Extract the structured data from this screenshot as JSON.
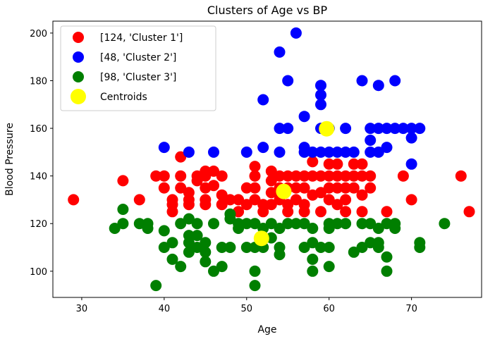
{
  "chart_data": {
    "type": "scatter",
    "title": "Clusters of Age vs BP",
    "xlabel": "Age",
    "ylabel": "Blood Pressure",
    "xlim": [
      26.5,
      78.5
    ],
    "ylim": [
      89,
      205
    ],
    "x_ticks": [
      30,
      40,
      50,
      60,
      70
    ],
    "y_ticks": [
      100,
      120,
      140,
      160,
      180,
      200
    ],
    "grid": false,
    "legend_position": "top-left",
    "series": [
      {
        "name": "[124, 'Cluster 1']",
        "color": "#ff0000",
        "points": [
          [
            29,
            130
          ],
          [
            35,
            138
          ],
          [
            37,
            130
          ],
          [
            39,
            140
          ],
          [
            40,
            140
          ],
          [
            40,
            135
          ],
          [
            41,
            130
          ],
          [
            41,
            128
          ],
          [
            41,
            125
          ],
          [
            42,
            148
          ],
          [
            42,
            140
          ],
          [
            42,
            135
          ],
          [
            43,
            133
          ],
          [
            43,
            130
          ],
          [
            43,
            128
          ],
          [
            44,
            138
          ],
          [
            44,
            140
          ],
          [
            45,
            142
          ],
          [
            45,
            140
          ],
          [
            45,
            135
          ],
          [
            45,
            130
          ],
          [
            45,
            128
          ],
          [
            46,
            142
          ],
          [
            46,
            136
          ],
          [
            47,
            140
          ],
          [
            47,
            132
          ],
          [
            47,
            128
          ],
          [
            48,
            130
          ],
          [
            49,
            130
          ],
          [
            49,
            125
          ],
          [
            50,
            135
          ],
          [
            50,
            128
          ],
          [
            51,
            144
          ],
          [
            51,
            140
          ],
          [
            51,
            135
          ],
          [
            51,
            130
          ],
          [
            52,
            128
          ],
          [
            52,
            125
          ],
          [
            53,
            142
          ],
          [
            53,
            138
          ],
          [
            53,
            133
          ],
          [
            53,
            128
          ],
          [
            54,
            140
          ],
          [
            54,
            135
          ],
          [
            54,
            132
          ],
          [
            54,
            130
          ],
          [
            55,
            140
          ],
          [
            55,
            135
          ],
          [
            55,
            128
          ],
          [
            55,
            125
          ],
          [
            56,
            140
          ],
          [
            56,
            135
          ],
          [
            56,
            130
          ],
          [
            57,
            140
          ],
          [
            57,
            135
          ],
          [
            57,
            128
          ],
          [
            57,
            125
          ],
          [
            58,
            146
          ],
          [
            58,
            140
          ],
          [
            58,
            132
          ],
          [
            59,
            140
          ],
          [
            59,
            133
          ],
          [
            59,
            125
          ],
          [
            60,
            145
          ],
          [
            60,
            140
          ],
          [
            60,
            135
          ],
          [
            60,
            130
          ],
          [
            61,
            145
          ],
          [
            61,
            140
          ],
          [
            61,
            135
          ],
          [
            61,
            128
          ],
          [
            62,
            140
          ],
          [
            62,
            135
          ],
          [
            62,
            130
          ],
          [
            62,
            125
          ],
          [
            63,
            145
          ],
          [
            63,
            140
          ],
          [
            63,
            135
          ],
          [
            64,
            145
          ],
          [
            64,
            140
          ],
          [
            64,
            132
          ],
          [
            64,
            125
          ],
          [
            65,
            140
          ],
          [
            65,
            135
          ],
          [
            67,
            125
          ],
          [
            69,
            140
          ],
          [
            70,
            130
          ],
          [
            76,
            140
          ],
          [
            77,
            125
          ]
        ]
      },
      {
        "name": "[48, 'Cluster 2']",
        "color": "#0000ff",
        "points": [
          [
            40,
            152
          ],
          [
            43,
            150
          ],
          [
            46,
            150
          ],
          [
            50,
            150
          ],
          [
            52,
            172
          ],
          [
            52,
            152
          ],
          [
            54,
            192
          ],
          [
            54,
            160
          ],
          [
            54,
            150
          ],
          [
            55,
            180
          ],
          [
            55,
            160
          ],
          [
            56,
            200
          ],
          [
            57,
            165
          ],
          [
            57,
            152
          ],
          [
            57,
            150
          ],
          [
            58,
            150
          ],
          [
            59,
            178
          ],
          [
            59,
            174
          ],
          [
            59,
            170
          ],
          [
            59,
            160
          ],
          [
            59,
            150
          ],
          [
            60,
            160
          ],
          [
            60,
            150
          ],
          [
            61,
            150
          ],
          [
            62,
            160
          ],
          [
            62,
            150
          ],
          [
            63,
            150
          ],
          [
            64,
            180
          ],
          [
            65,
            160
          ],
          [
            65,
            155
          ],
          [
            65,
            150
          ],
          [
            66,
            160
          ],
          [
            66,
            178
          ],
          [
            66,
            150
          ],
          [
            67,
            160
          ],
          [
            67,
            152
          ],
          [
            68,
            180
          ],
          [
            68,
            160
          ],
          [
            69,
            160
          ],
          [
            70,
            160
          ],
          [
            70,
            156
          ],
          [
            70,
            145
          ],
          [
            71,
            160
          ]
        ]
      },
      {
        "name": "[98, 'Cluster 3']",
        "color": "#007f00",
        "points": [
          [
            34,
            118
          ],
          [
            35,
            120
          ],
          [
            35,
            126
          ],
          [
            37,
            120
          ],
          [
            38,
            120
          ],
          [
            38,
            118
          ],
          [
            39,
            94
          ],
          [
            40,
            110
          ],
          [
            40,
            117
          ],
          [
            41,
            105
          ],
          [
            41,
            112
          ],
          [
            42,
            120
          ],
          [
            42,
            102
          ],
          [
            43,
            122
          ],
          [
            43,
            115
          ],
          [
            43,
            112
          ],
          [
            43,
            108
          ],
          [
            44,
            120
          ],
          [
            44,
            115
          ],
          [
            44,
            110
          ],
          [
            45,
            112
          ],
          [
            45,
            108
          ],
          [
            45,
            104
          ],
          [
            46,
            120
          ],
          [
            46,
            100
          ],
          [
            47,
            102
          ],
          [
            47,
            110
          ],
          [
            48,
            124
          ],
          [
            48,
            122
          ],
          [
            48,
            110
          ],
          [
            49,
            120
          ],
          [
            49,
            118
          ],
          [
            50,
            120
          ],
          [
            50,
            110
          ],
          [
            51,
            120
          ],
          [
            51,
            100
          ],
          [
            51,
            94
          ],
          [
            51,
            110
          ],
          [
            52,
            118
          ],
          [
            52,
            110
          ],
          [
            53,
            120
          ],
          [
            53,
            114
          ],
          [
            54,
            118
          ],
          [
            54,
            110
          ],
          [
            54,
            107
          ],
          [
            55,
            120
          ],
          [
            56,
            120
          ],
          [
            57,
            120
          ],
          [
            57,
            110
          ],
          [
            58,
            118
          ],
          [
            58,
            112
          ],
          [
            58,
            105
          ],
          [
            58,
            100
          ],
          [
            59,
            110
          ],
          [
            60,
            120
          ],
          [
            60,
            118
          ],
          [
            60,
            110
          ],
          [
            60,
            102
          ],
          [
            61,
            120
          ],
          [
            62,
            120
          ],
          [
            63,
            108
          ],
          [
            64,
            120
          ],
          [
            64,
            110
          ],
          [
            65,
            120
          ],
          [
            65,
            112
          ],
          [
            66,
            118
          ],
          [
            66,
            110
          ],
          [
            66,
            112
          ],
          [
            67,
            120
          ],
          [
            67,
            106
          ],
          [
            67,
            100
          ],
          [
            68,
            120
          ],
          [
            68,
            118
          ],
          [
            71,
            112
          ],
          [
            71,
            110
          ],
          [
            74,
            120
          ]
        ]
      },
      {
        "name": "Centroids",
        "color": "#ffff00",
        "points": [
          [
            54.5,
            133.5
          ],
          [
            59.7,
            159.8
          ],
          [
            51.8,
            113.8
          ]
        ]
      }
    ]
  }
}
